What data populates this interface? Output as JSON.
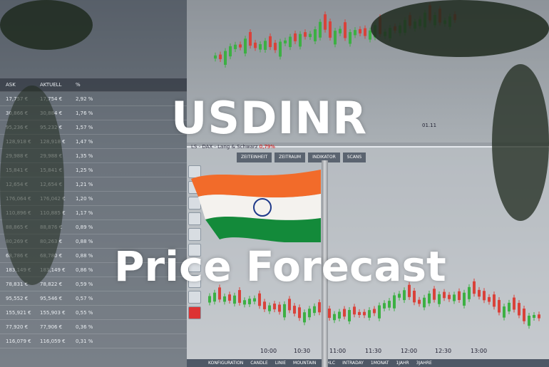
{
  "overlay": {
    "title_line1": "USDINR",
    "title_line2": "Price Forecast"
  },
  "chart": {
    "instrument": "LS - DAX - Lang & Schwarz",
    "change": "0,79%",
    "toolbar": [
      "ZEITEINHEIT",
      "ZEITRAUM",
      "INDIKATOR",
      "SCANS"
    ],
    "time_labels": [
      "10:00",
      "10:30",
      "11:00",
      "11:30",
      "12:00",
      "12:30",
      "13:00"
    ],
    "top_time_label": "01.11",
    "tabs": [
      "KONFIGURATION",
      "CANDLE",
      "LINIE",
      "MOUNTAIN",
      "OHLC",
      "INTRADAY",
      "1MONAT",
      "1JAHR",
      "3JAHRE"
    ]
  },
  "table": {
    "headers": [
      "ASK",
      "AKTUELL",
      "%"
    ],
    "rows": [
      [
        "17,757 €",
        "17,754 €",
        "2,92 %"
      ],
      [
        "30,866 €",
        "30,884 €",
        "1,76 %"
      ],
      [
        "95,236 €",
        "95,232 €",
        "1,57 %"
      ],
      [
        "128,918 €",
        "128,918 €",
        "1,47 %"
      ],
      [
        "29,988 €",
        "29,988 €",
        "1,35 %"
      ],
      [
        "15,841 €",
        "15,841 €",
        "1,25 %"
      ],
      [
        "12,654 €",
        "12,654 €",
        "1,21 %"
      ],
      [
        "176,064 €",
        "176,042 €",
        "1,20 %"
      ],
      [
        "110,896 €",
        "110,885 €",
        "1,17 %"
      ],
      [
        "88,865 €",
        "88,876 €",
        "0,89 %"
      ],
      [
        "80,269 €",
        "80,263 €",
        "0,88 %"
      ],
      [
        "68,786 €",
        "68,780 €",
        "0,88 %"
      ],
      [
        "183,149 €",
        "183,149 €",
        "0,86 %"
      ],
      [
        "78,831 €",
        "78,822 €",
        "0,59 %"
      ],
      [
        "95,552 €",
        "95,546 €",
        "0,57 %"
      ],
      [
        "155,921 €",
        "155,903 €",
        "0,55 %"
      ],
      [
        "77,920 €",
        "77,906 €",
        "0,36 %"
      ],
      [
        "116,079 €",
        "116,059 €",
        "0,31 %"
      ]
    ]
  },
  "colors": {
    "up": "#3cb043",
    "down": "#d9423a",
    "saffron": "#f26b2a",
    "green": "#138a3a",
    "navy": "#1f3a8a"
  }
}
